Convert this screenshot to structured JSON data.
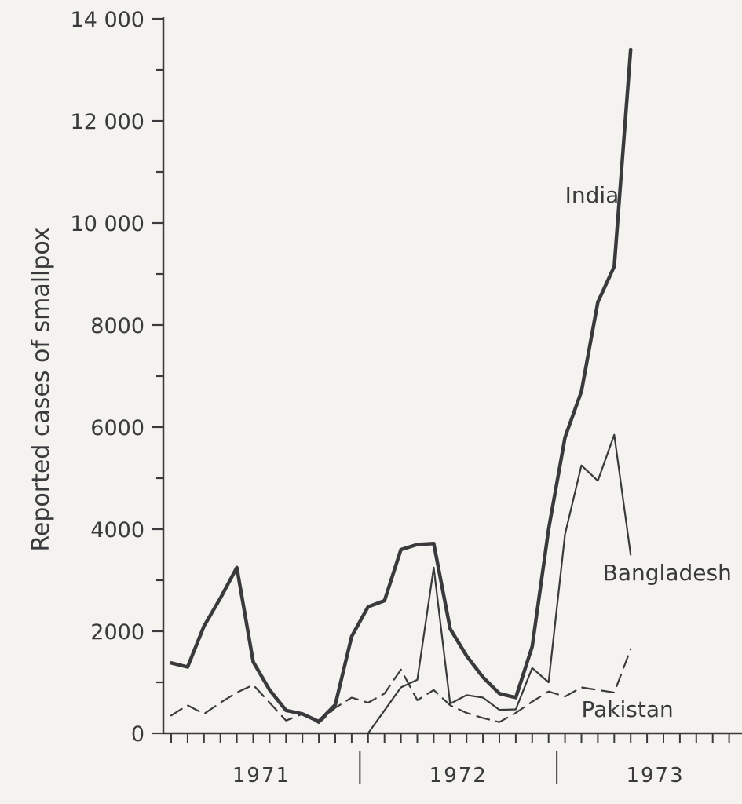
{
  "chart_data": {
    "type": "line",
    "ylabel": "Reported cases of smallpox",
    "xlabel": "",
    "ylim": [
      0,
      14000
    ],
    "y_ticks": [
      {
        "value": 0,
        "label": "0"
      },
      {
        "value": 2000,
        "label": "2000"
      },
      {
        "value": 4000,
        "label": "4000"
      },
      {
        "value": 6000,
        "label": "6000"
      },
      {
        "value": 8000,
        "label": "8000"
      },
      {
        "value": 10000,
        "label": "10 000"
      },
      {
        "value": 12000,
        "label": "12 000"
      },
      {
        "value": 14000,
        "label": "14 000"
      }
    ],
    "y_minor_step": 1000,
    "x_unit": "month",
    "x_start_month": 1,
    "x_tick_count": 36,
    "years": [
      "1971",
      "1972",
      "1973"
    ],
    "grid": false,
    "legend": "inline labels",
    "series": [
      {
        "name": "India",
        "style": "solid-thick",
        "label_anchor": [
          25.0,
          10400
        ],
        "points": [
          [
            1,
            1380
          ],
          [
            2,
            1300
          ],
          [
            3,
            2100
          ],
          [
            4,
            2650
          ],
          [
            5,
            3250
          ],
          [
            6,
            1400
          ],
          [
            7,
            850
          ],
          [
            8,
            450
          ],
          [
            9,
            380
          ],
          [
            10,
            230
          ],
          [
            11,
            560
          ],
          [
            12,
            1900
          ],
          [
            13,
            2480
          ],
          [
            14,
            2600
          ],
          [
            15,
            3600
          ],
          [
            16,
            3700
          ],
          [
            17,
            3720
          ],
          [
            18,
            2050
          ],
          [
            19,
            1520
          ],
          [
            20,
            1100
          ],
          [
            21,
            780
          ],
          [
            22,
            700
          ],
          [
            23,
            1700
          ],
          [
            24,
            4000
          ],
          [
            25,
            5800
          ],
          [
            26,
            6700
          ],
          [
            27,
            8450
          ],
          [
            28,
            9150
          ],
          [
            29,
            13400
          ]
        ]
      },
      {
        "name": "Bangladesh",
        "style": "solid-thin",
        "label_anchor": [
          27.3,
          3000
        ],
        "points": [
          [
            13,
            0
          ],
          [
            14,
            450
          ],
          [
            15,
            900
          ],
          [
            16,
            1050
          ],
          [
            17,
            3250
          ],
          [
            18,
            580
          ],
          [
            19,
            750
          ],
          [
            20,
            700
          ],
          [
            21,
            460
          ],
          [
            22,
            470
          ],
          [
            23,
            1280
          ],
          [
            24,
            1000
          ],
          [
            25,
            3900
          ],
          [
            26,
            5250
          ],
          [
            27,
            4950
          ],
          [
            28,
            5850
          ],
          [
            29,
            3500
          ]
        ]
      },
      {
        "name": "Pakistan",
        "style": "dashed",
        "label_anchor": [
          26.0,
          320
        ],
        "points": [
          [
            1,
            350
          ],
          [
            2,
            550
          ],
          [
            3,
            380
          ],
          [
            4,
            600
          ],
          [
            5,
            800
          ],
          [
            6,
            950
          ],
          [
            7,
            600
          ],
          [
            8,
            250
          ],
          [
            9,
            380
          ],
          [
            10,
            200
          ],
          [
            11,
            500
          ],
          [
            12,
            700
          ],
          [
            13,
            600
          ],
          [
            14,
            780
          ],
          [
            15,
            1250
          ],
          [
            16,
            650
          ],
          [
            17,
            850
          ],
          [
            18,
            550
          ],
          [
            19,
            400
          ],
          [
            20,
            300
          ],
          [
            21,
            220
          ],
          [
            22,
            400
          ],
          [
            23,
            620
          ],
          [
            24,
            820
          ],
          [
            25,
            720
          ],
          [
            26,
            900
          ],
          [
            27,
            850
          ],
          [
            28,
            800
          ],
          [
            29,
            1650
          ]
        ]
      }
    ]
  }
}
